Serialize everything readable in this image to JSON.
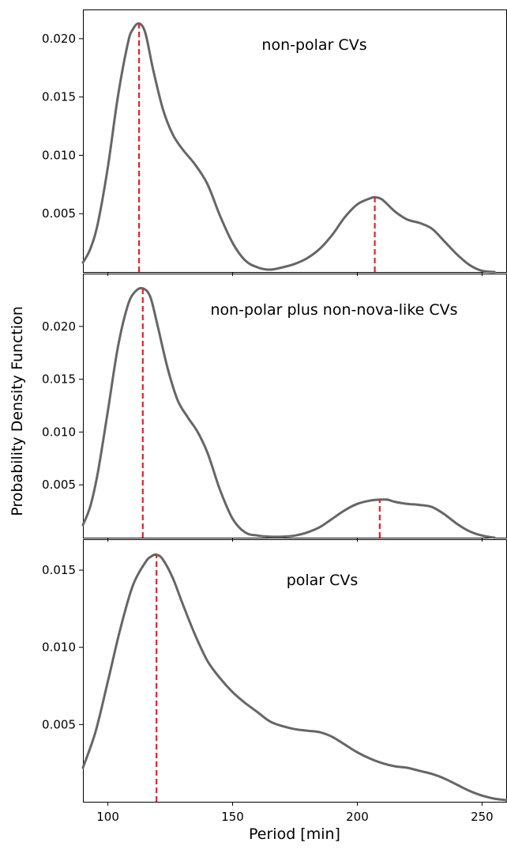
{
  "figure": {
    "ylabel": "Probability Density Function",
    "xlabel": "Period [min]",
    "x_tick_labels": [
      "100",
      "150",
      "200",
      "250"
    ],
    "colors": {
      "curve": "#666666",
      "peak_line": "#e8202a"
    }
  },
  "chart_data": [
    {
      "type": "line",
      "annotation": "non-polar CVs",
      "xlabel": "",
      "ylabel": "",
      "xlim": [
        90,
        260
      ],
      "ylim": [
        0,
        0.0225
      ],
      "x_ticks": [
        100,
        150,
        200,
        250
      ],
      "y_ticks": [
        0.005,
        0.01,
        0.015,
        0.02
      ],
      "y_tick_labels": [
        "0.005",
        "0.010",
        "0.015",
        "0.020"
      ],
      "grid": false,
      "series": [
        {
          "x": [
            90,
            93,
            96,
            100,
            104,
            108,
            110,
            112.5,
            115,
            118,
            122,
            126,
            130,
            135,
            140,
            145,
            150,
            155,
            160,
            165,
            170,
            175,
            180,
            185,
            190,
            195,
            200,
            205,
            207,
            210,
            215,
            220,
            225,
            230,
            235,
            240,
            245,
            250,
            255
          ],
          "y": [
            0.0008,
            0.002,
            0.0042,
            0.009,
            0.015,
            0.0196,
            0.0208,
            0.0213,
            0.0205,
            0.0175,
            0.014,
            0.0118,
            0.0105,
            0.0092,
            0.0075,
            0.0048,
            0.0025,
            0.001,
            0.0004,
            0.0002,
            0.0004,
            0.0007,
            0.0012,
            0.002,
            0.0032,
            0.0047,
            0.0058,
            0.0063,
            0.0064,
            0.0062,
            0.0052,
            0.0045,
            0.0042,
            0.0037,
            0.0026,
            0.0015,
            0.0006,
            0.0001,
            0.0
          ]
        }
      ],
      "peak_lines": [
        112.5,
        207
      ]
    },
    {
      "type": "line",
      "annotation": "non-polar plus non-nova-like CVs",
      "xlabel": "",
      "ylabel": "",
      "xlim": [
        90,
        260
      ],
      "ylim": [
        0,
        0.025
      ],
      "x_ticks": [
        100,
        150,
        200,
        250
      ],
      "y_ticks": [
        0.005,
        0.01,
        0.015,
        0.02
      ],
      "y_tick_labels": [
        "0.005",
        "0.010",
        "0.015",
        "0.020"
      ],
      "grid": false,
      "series": [
        {
          "x": [
            90,
            93,
            96,
            100,
            104,
            108,
            111,
            114,
            117,
            120,
            124,
            128,
            132,
            136,
            140,
            145,
            150,
            155,
            160,
            165,
            170,
            175,
            180,
            185,
            190,
            195,
            200,
            205,
            209,
            212,
            215,
            220,
            225,
            230,
            235,
            240,
            245,
            250,
            255
          ],
          "y": [
            0.0012,
            0.003,
            0.0062,
            0.012,
            0.018,
            0.022,
            0.0233,
            0.0236,
            0.0228,
            0.02,
            0.016,
            0.013,
            0.0114,
            0.01,
            0.008,
            0.0045,
            0.0018,
            0.0005,
            0.0002,
            0.0001,
            0.0001,
            0.0002,
            0.0005,
            0.001,
            0.0018,
            0.0026,
            0.0032,
            0.0035,
            0.0036,
            0.0036,
            0.0034,
            0.0032,
            0.0031,
            0.0029,
            0.0022,
            0.0013,
            0.0006,
            0.0002,
            0.0
          ]
        }
      ],
      "peak_lines": [
        114,
        209
      ]
    },
    {
      "type": "line",
      "annotation": "polar CVs",
      "xlabel": "Period [min]",
      "ylabel": "",
      "xlim": [
        90,
        260
      ],
      "ylim": [
        0,
        0.017
      ],
      "x_ticks": [
        100,
        150,
        200,
        250
      ],
      "y_ticks": [
        0.005,
        0.01,
        0.015
      ],
      "y_tick_labels": [
        "0.005",
        "0.010",
        "0.015"
      ],
      "grid": false,
      "series": [
        {
          "x": [
            90,
            95,
            100,
            105,
            110,
            115,
            117.5,
            119.5,
            122,
            126,
            130,
            135,
            140,
            145,
            150,
            155,
            160,
            165,
            170,
            175,
            180,
            185,
            190,
            195,
            200,
            205,
            210,
            215,
            220,
            225,
            230,
            235,
            240,
            245,
            250,
            255,
            260
          ],
          "y": [
            0.0022,
            0.0045,
            0.0078,
            0.0112,
            0.014,
            0.0155,
            0.0159,
            0.016,
            0.0157,
            0.0145,
            0.0128,
            0.0108,
            0.0091,
            0.008,
            0.0071,
            0.0064,
            0.0058,
            0.0052,
            0.0049,
            0.0047,
            0.0046,
            0.0045,
            0.0042,
            0.0037,
            0.0032,
            0.0028,
            0.0025,
            0.0023,
            0.0022,
            0.002,
            0.0018,
            0.0015,
            0.0011,
            0.0007,
            0.0004,
            0.0002,
            0.0001
          ]
        }
      ],
      "peak_lines": [
        119.5
      ]
    }
  ]
}
